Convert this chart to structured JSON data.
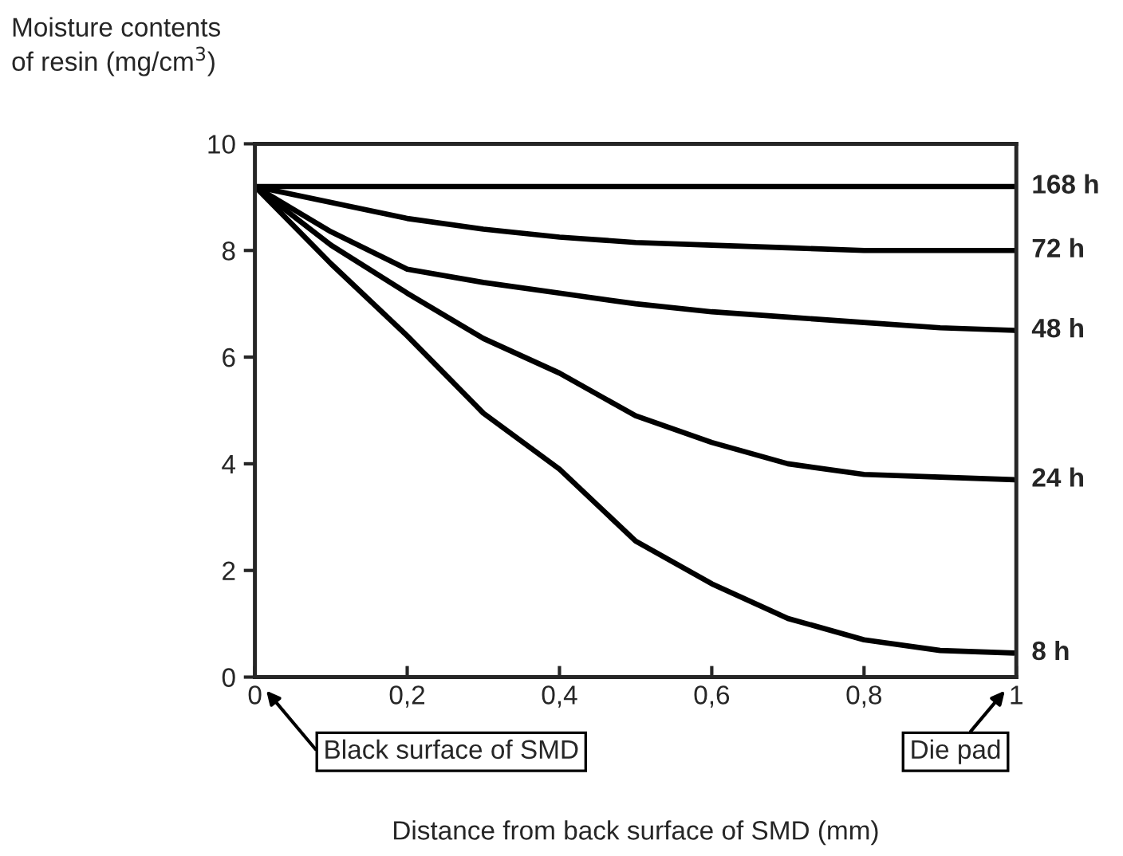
{
  "chart_data": {
    "type": "line",
    "xlabel": "Distance from back surface of SMD (mm)",
    "ylabel": "Moisture contents\nof resin (mg/cm$^{3}$)",
    "x": [
      0,
      0.1,
      0.2,
      0.3,
      0.4,
      0.5,
      0.6,
      0.7,
      0.8,
      0.9,
      1
    ],
    "series": [
      {
        "name": "168 h",
        "color": "#000000",
        "values": [
          9.2,
          9.2,
          9.2,
          9.2,
          9.2,
          9.2,
          9.2,
          9.2,
          9.2,
          9.2,
          9.2
        ]
      },
      {
        "name": "72 h",
        "color": "#000000",
        "values": [
          9.2,
          8.9,
          8.6,
          8.4,
          8.25,
          8.15,
          8.1,
          8.05,
          8.0,
          8.0,
          8.0
        ]
      },
      {
        "name": "48 h",
        "color": "#000000",
        "values": [
          9.2,
          8.35,
          7.65,
          7.4,
          7.2,
          7.0,
          6.85,
          6.75,
          6.65,
          6.55,
          6.5
        ]
      },
      {
        "name": "24 h",
        "color": "#000000",
        "values": [
          9.2,
          8.1,
          7.2,
          6.35,
          5.7,
          4.9,
          4.4,
          4.0,
          3.8,
          3.75,
          3.7
        ]
      },
      {
        "name": "8 h",
        "color": "#000000",
        "values": [
          9.2,
          7.75,
          6.4,
          4.95,
          3.9,
          2.55,
          1.75,
          1.1,
          0.7,
          0.5,
          0.45
        ]
      }
    ],
    "xlim": [
      0,
      1
    ],
    "ylim": [
      0,
      10
    ],
    "xticks": [
      0,
      {
        "value": 0.2,
        "label": "0,2"
      },
      {
        "value": 0.4,
        "label": "0,4"
      },
      {
        "value": 0.6,
        "label": "0,6"
      },
      {
        "value": 0.8,
        "label": "0,8"
      },
      1
    ],
    "yticks": [
      0,
      2,
      4,
      6,
      8,
      10
    ],
    "annotations": [
      "Black surface of SMD",
      "Die pad"
    ],
    "grid": false,
    "legend": false,
    "marker": "none",
    "line_style": "solid"
  }
}
